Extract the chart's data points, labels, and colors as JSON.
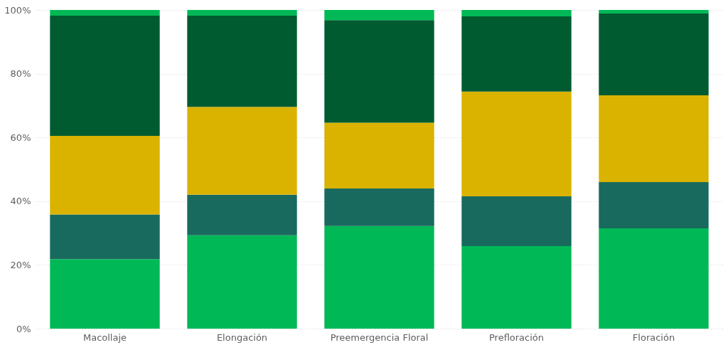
{
  "chart_data": {
    "type": "bar",
    "stacked": true,
    "categories": [
      "Macollaje",
      "Elongación",
      "Preemergencia Floral",
      "Prefloración",
      "Floración"
    ],
    "series": [
      {
        "color": "#00b956",
        "values": [
          21.8,
          29.3,
          32.2,
          25.9,
          31.5
        ]
      },
      {
        "color": "#186a5e",
        "values": [
          14.0,
          12.7,
          11.8,
          15.6,
          14.5
        ]
      },
      {
        "color": "#d9b300",
        "values": [
          24.7,
          27.6,
          20.6,
          32.9,
          27.2
        ]
      },
      {
        "color": "#005c30",
        "values": [
          37.7,
          28.6,
          32.2,
          23.6,
          25.7
        ]
      },
      {
        "color": "#00b956",
        "values": [
          1.8,
          1.8,
          3.2,
          2.0,
          1.1
        ]
      }
    ],
    "ylim": [
      0,
      100
    ],
    "yticks": [
      {
        "value": 0,
        "label": "0%"
      },
      {
        "value": 20,
        "label": "20%"
      },
      {
        "value": 40,
        "label": "40%"
      },
      {
        "value": 60,
        "label": "60%"
      },
      {
        "value": 80,
        "label": "80%"
      },
      {
        "value": 100,
        "label": "100%"
      }
    ],
    "grid": "y",
    "legend": false
  }
}
